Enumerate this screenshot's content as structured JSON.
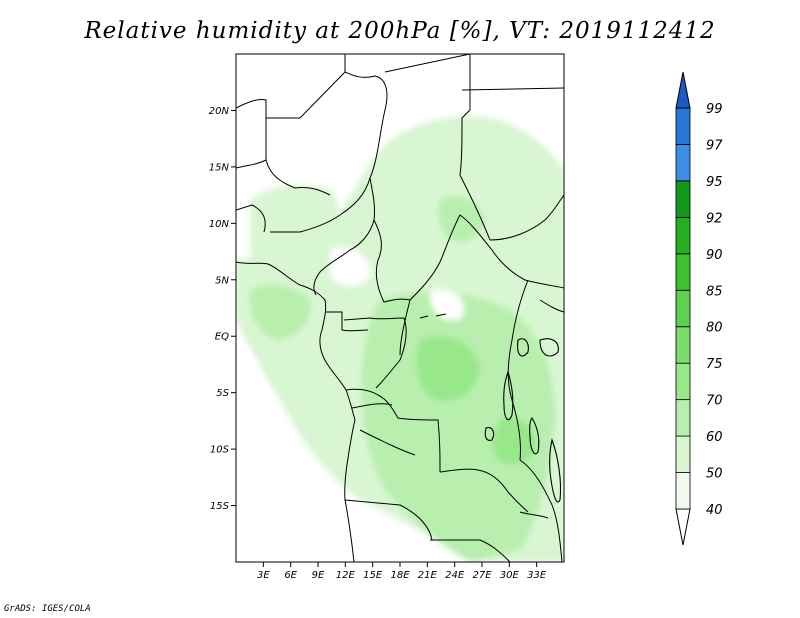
{
  "title": "Relative humidity at 200hPa [%], VT: 2019112412",
  "credit": "GrADS: IGES/COLA",
  "map": {
    "lon_range": [
      0,
      36
    ],
    "lat_range": [
      -20,
      25
    ],
    "lat_ticks": [
      {
        "value": 20,
        "label": "20N"
      },
      {
        "value": 15,
        "label": "15N"
      },
      {
        "value": 10,
        "label": "10N"
      },
      {
        "value": 5,
        "label": "5N"
      },
      {
        "value": 0,
        "label": "EQ"
      },
      {
        "value": -5,
        "label": "5S"
      },
      {
        "value": -10,
        "label": "10S"
      },
      {
        "value": -15,
        "label": "15S"
      }
    ],
    "lon_ticks": [
      {
        "value": 3,
        "label": "3E"
      },
      {
        "value": 6,
        "label": "6E"
      },
      {
        "value": 9,
        "label": "9E"
      },
      {
        "value": 12,
        "label": "12E"
      },
      {
        "value": 15,
        "label": "15E"
      },
      {
        "value": 18,
        "label": "18E"
      },
      {
        "value": 21,
        "label": "21E"
      },
      {
        "value": 24,
        "label": "24E"
      },
      {
        "value": 27,
        "label": "27E"
      },
      {
        "value": 30,
        "label": "30E"
      },
      {
        "value": 33,
        "label": "33E"
      }
    ]
  },
  "colorbar": {
    "levels": [
      "40",
      "50",
      "60",
      "70",
      "75",
      "80",
      "85",
      "90",
      "92",
      "95",
      "97",
      "99"
    ],
    "colors": [
      "#f0fbee",
      "#d8f6d2",
      "#b8efae",
      "#98e78a",
      "#7ddc6e",
      "#5fd04f",
      "#3fc033",
      "#24ae20",
      "#11991a",
      "#3d8fe6",
      "#2775d8",
      "#1a5cc2"
    ],
    "min_color": "#ffffff",
    "max_color": "#1a5cc2"
  }
}
